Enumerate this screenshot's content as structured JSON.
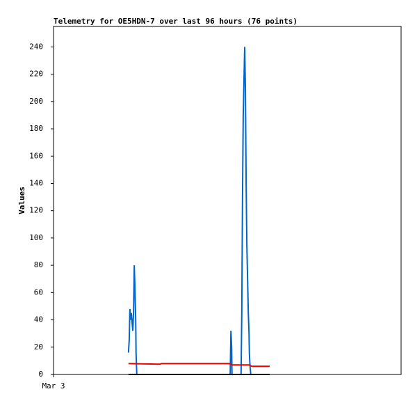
{
  "chart_data": {
    "type": "line",
    "title": "Telemetry for OE5HDN-7 over last 96 hours (76 points)",
    "y_label": "Values",
    "xlim": [
      0,
      96
    ],
    "xticks": [
      {
        "value": 0,
        "label": "Mar 3"
      }
    ],
    "ylim": [
      0,
      255
    ],
    "yticks": [
      0,
      20,
      40,
      60,
      80,
      100,
      120,
      140,
      160,
      180,
      200,
      220,
      240
    ],
    "grid": false,
    "series": [
      {
        "color": "#0066cc",
        "x": [
          20.7,
          20.9,
          21.1,
          21.3,
          21.5,
          21.7,
          21.9,
          22.1,
          22.3,
          22.5,
          22.7,
          22.8,
          23.0,
          48.6,
          48.8,
          49.0,
          49.2,
          49.3,
          51.8,
          52.0,
          52.2,
          52.4,
          52.6,
          52.8,
          53.0,
          53.2,
          53.4,
          53.6,
          53.8,
          54.0,
          54.1,
          54.3,
          54.5,
          54.9,
          59.7
        ],
        "values": [
          16,
          25,
          48,
          40,
          45,
          38,
          32,
          45,
          80,
          62,
          40,
          15,
          0,
          0,
          0,
          32,
          20,
          0,
          0,
          45,
          130,
          190,
          215,
          240,
          210,
          140,
          95,
          70,
          45,
          30,
          15,
          5,
          0,
          0,
          0
        ]
      },
      {
        "color": "#ee0000",
        "x": [
          20.7,
          29.4,
          29.8,
          48.6,
          49.3,
          54.0,
          54.7,
          59.7
        ],
        "values": [
          8,
          7.5,
          8,
          8,
          7,
          7,
          6,
          6
        ]
      },
      {
        "color": "#000000",
        "x": [
          20.7,
          59.7
        ],
        "values": [
          0,
          0
        ]
      }
    ]
  }
}
